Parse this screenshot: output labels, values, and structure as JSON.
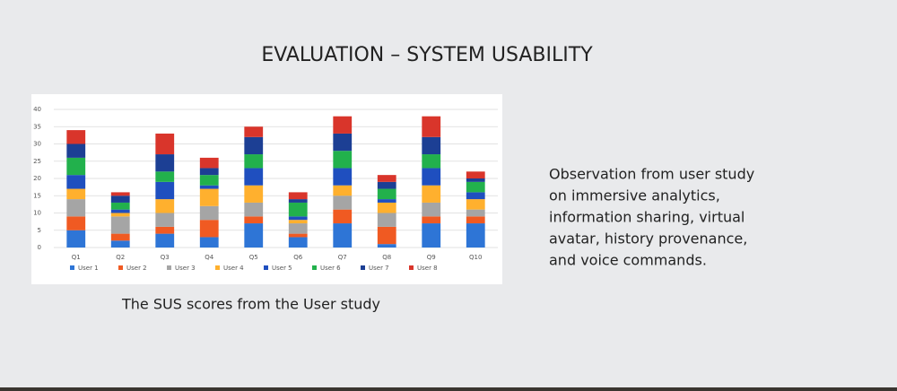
{
  "slide_title": "EVALUATION – SYSTEM USABILITY",
  "caption": "The SUS scores from the User study",
  "observation": [
    "Observation from user study",
    "on immersive analytics,",
    "information sharing, virtual",
    "avatar, history provenance,",
    "and voice commands."
  ],
  "chart_data": {
    "type": "stacked-bar",
    "categories": [
      "Q1",
      "Q2",
      "Q3",
      "Q4",
      "Q5",
      "Q6",
      "Q7",
      "Q8",
      "Q9",
      "Q10"
    ],
    "series": [
      {
        "name": "User 1",
        "color": "#2e75d6",
        "values": [
          5,
          2,
          4,
          3,
          7,
          3,
          7,
          1,
          7,
          7
        ]
      },
      {
        "name": "User 2",
        "color": "#f05a22",
        "values": [
          4,
          2,
          2,
          5,
          2,
          1,
          4,
          5,
          2,
          2
        ]
      },
      {
        "name": "User 3",
        "color": "#a5a5a5",
        "values": [
          5,
          5,
          4,
          4,
          4,
          3,
          4,
          4,
          4,
          2
        ]
      },
      {
        "name": "User 4",
        "color": "#ffb02e",
        "values": [
          3,
          1,
          4,
          5,
          5,
          1,
          3,
          3,
          5,
          3
        ]
      },
      {
        "name": "User 5",
        "color": "#1f4fbf",
        "values": [
          4,
          1,
          5,
          1,
          5,
          1,
          5,
          1,
          5,
          2
        ]
      },
      {
        "name": "User 6",
        "color": "#22b14c",
        "values": [
          5,
          2,
          3,
          3,
          4,
          4,
          5,
          3,
          4,
          3
        ]
      },
      {
        "name": "User 7",
        "color": "#1c3f94",
        "values": [
          4,
          2,
          5,
          2,
          5,
          1,
          5,
          2,
          5,
          1
        ]
      },
      {
        "name": "User 8",
        "color": "#d9352b",
        "values": [
          4,
          1,
          6,
          3,
          3,
          2,
          5,
          2,
          6,
          2
        ]
      }
    ],
    "ylim": [
      0,
      40
    ],
    "yticks": [
      0,
      5,
      10,
      15,
      20,
      25,
      30,
      35,
      40
    ],
    "grid": true
  }
}
